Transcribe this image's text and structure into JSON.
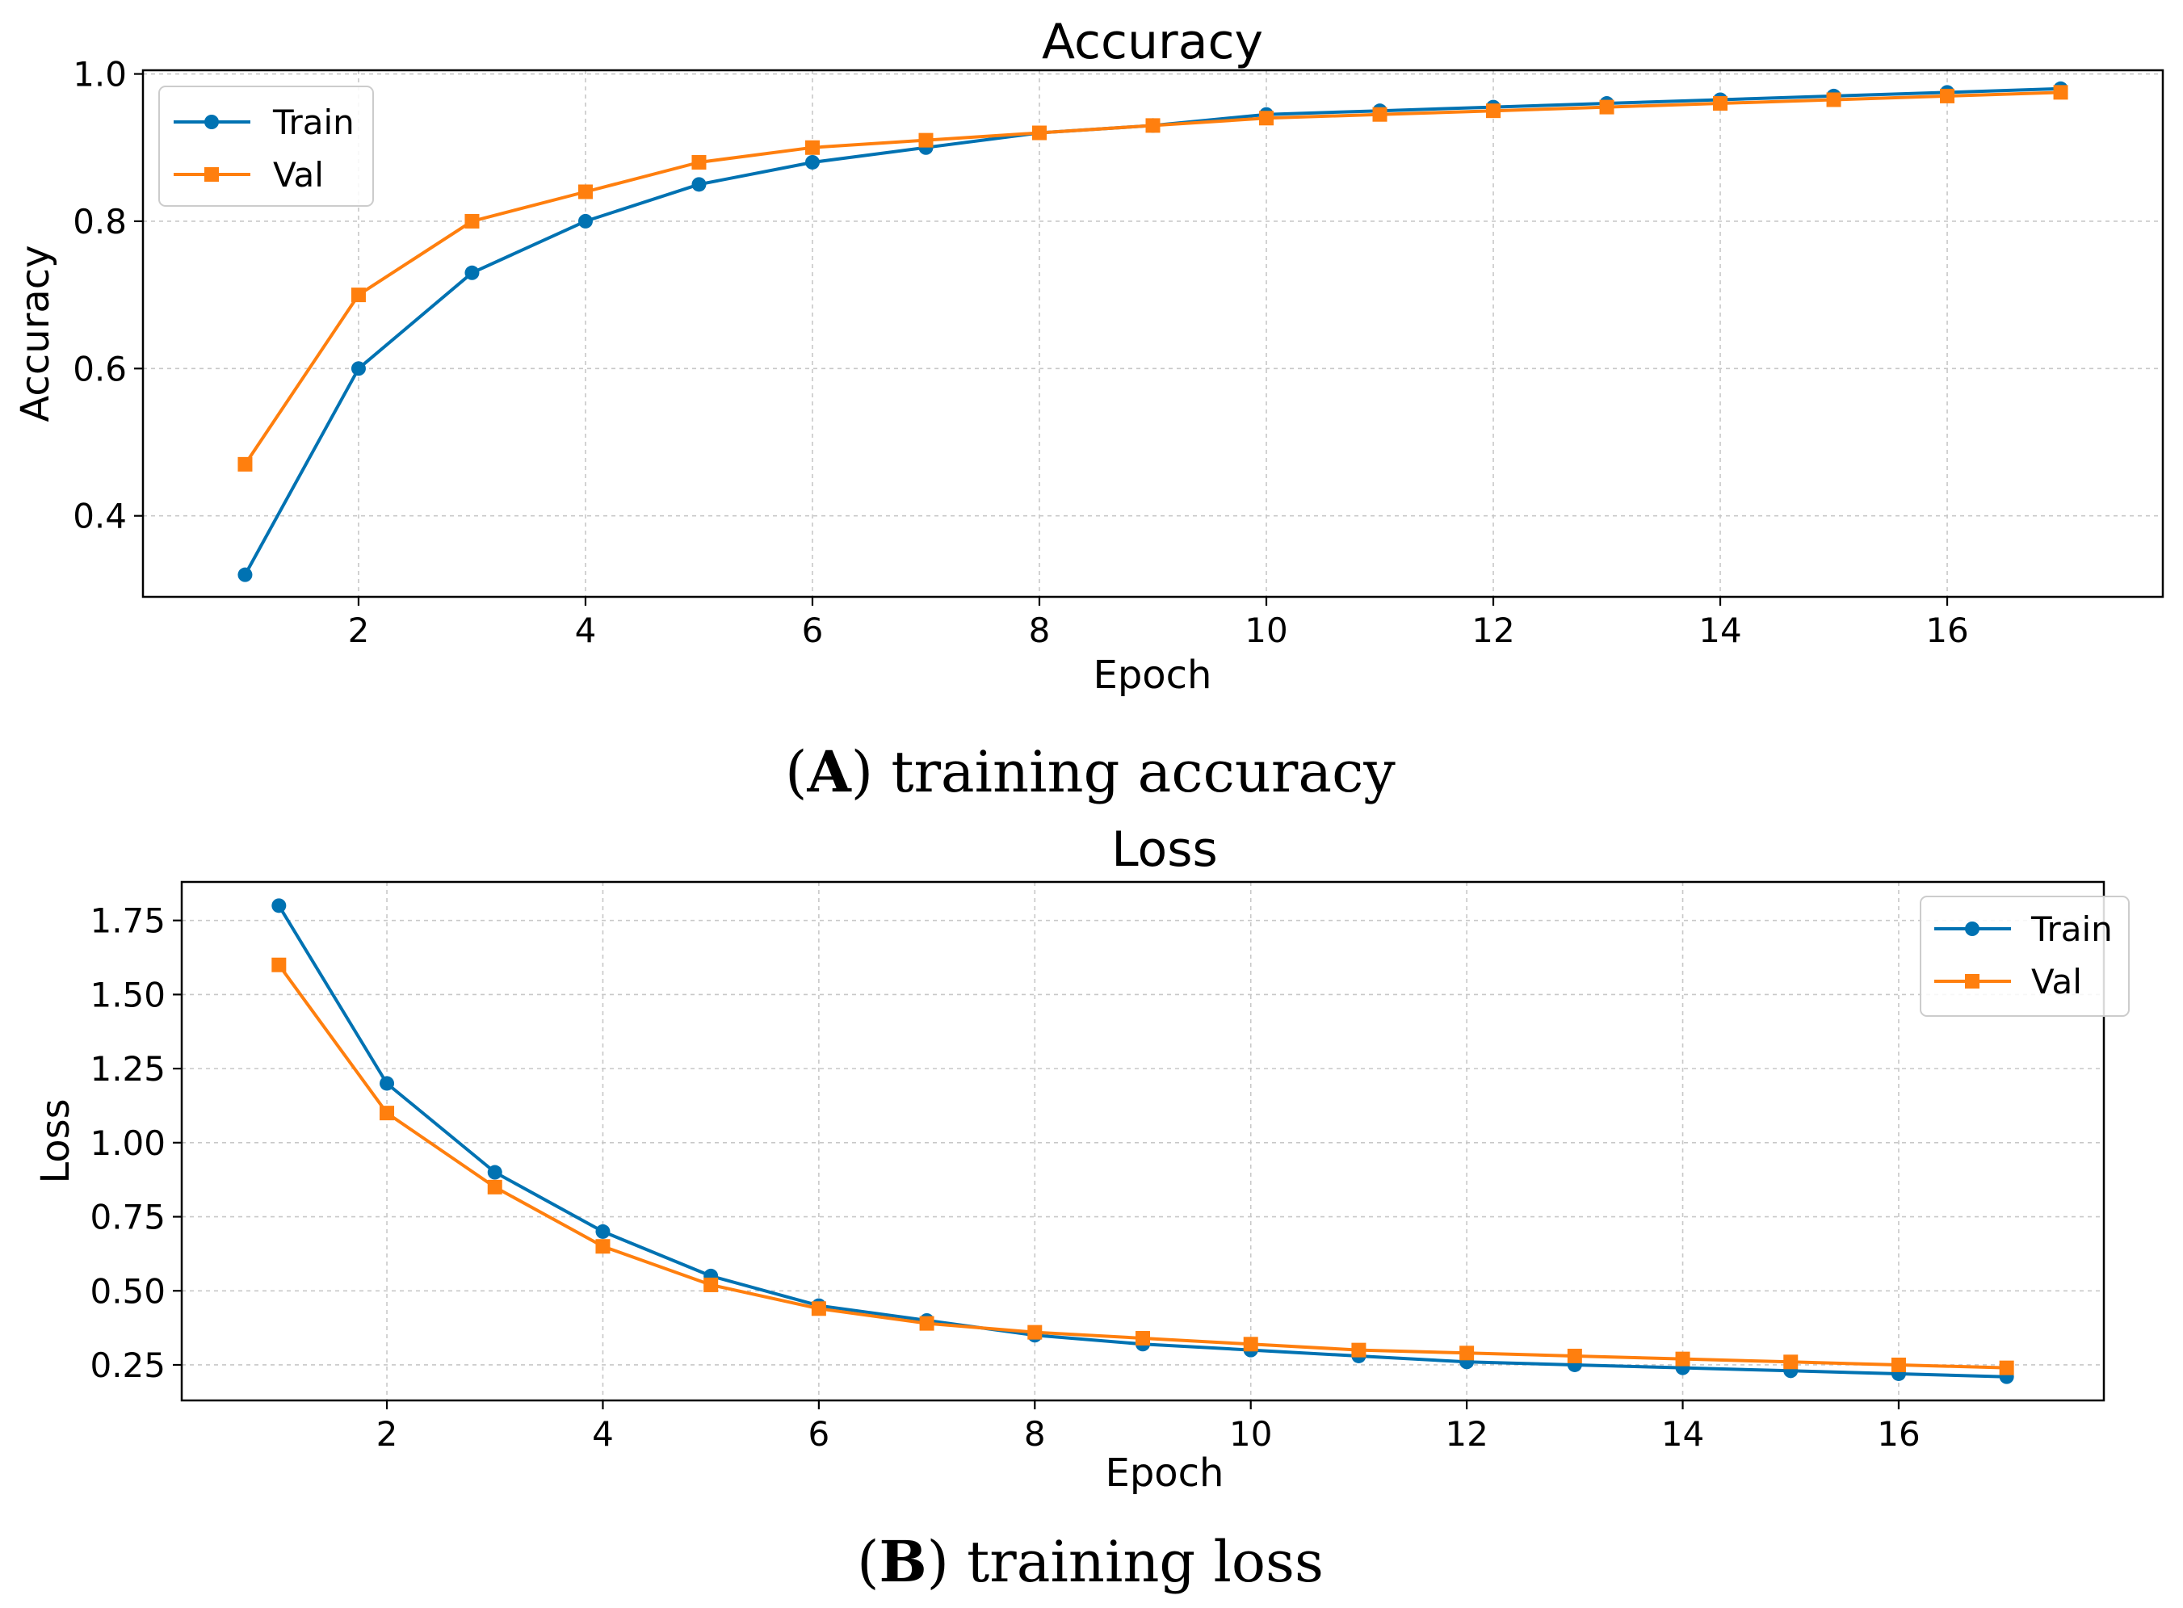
{
  "chart_data": [
    {
      "type": "line",
      "title": "Accuracy",
      "xlabel": "Epoch",
      "ylabel": "Accuracy",
      "caption": {
        "open": "(",
        "letter": "A",
        "rest": ") training accuracy"
      },
      "xlim": [
        0.1,
        17.9
      ],
      "ylim": [
        0.29,
        1.005
      ],
      "xticks": [
        2,
        4,
        6,
        8,
        10,
        12,
        14,
        16
      ],
      "yticks": [
        0.4,
        0.6,
        0.8,
        1.0
      ],
      "ytick_labels": [
        "0.4",
        "0.6",
        "0.8",
        "1.0"
      ],
      "legend_position": "upper-left",
      "x": [
        1,
        2,
        3,
        4,
        5,
        6,
        7,
        8,
        9,
        10,
        11,
        12,
        13,
        14,
        15,
        16,
        17
      ],
      "series": [
        {
          "name": "Train",
          "color": "#0072b2",
          "marker": "circle",
          "values": [
            0.32,
            0.6,
            0.73,
            0.8,
            0.85,
            0.88,
            0.9,
            0.92,
            0.93,
            0.945,
            0.95,
            0.955,
            0.96,
            0.965,
            0.97,
            0.975,
            0.98
          ]
        },
        {
          "name": "Val",
          "color": "#ff7f0e",
          "marker": "square",
          "values": [
            0.47,
            0.7,
            0.8,
            0.84,
            0.88,
            0.9,
            0.91,
            0.92,
            0.93,
            0.94,
            0.945,
            0.95,
            0.955,
            0.96,
            0.965,
            0.97,
            0.975
          ]
        }
      ]
    },
    {
      "type": "line",
      "title": "Loss",
      "xlabel": "Epoch",
      "ylabel": "Loss",
      "caption": {
        "open": "(",
        "letter": "B",
        "rest": ") training loss"
      },
      "xlim": [
        0.1,
        17.9
      ],
      "ylim": [
        0.13,
        1.88
      ],
      "xticks": [
        2,
        4,
        6,
        8,
        10,
        12,
        14,
        16
      ],
      "yticks": [
        0.25,
        0.5,
        0.75,
        1.0,
        1.25,
        1.5,
        1.75
      ],
      "ytick_labels": [
        "0.25",
        "0.50",
        "0.75",
        "1.00",
        "1.25",
        "1.50",
        "1.75"
      ],
      "legend_position": "upper-right",
      "x": [
        1,
        2,
        3,
        4,
        5,
        6,
        7,
        8,
        9,
        10,
        11,
        12,
        13,
        14,
        15,
        16,
        17
      ],
      "series": [
        {
          "name": "Train",
          "color": "#0072b2",
          "marker": "circle",
          "values": [
            1.8,
            1.2,
            0.9,
            0.7,
            0.55,
            0.45,
            0.4,
            0.35,
            0.32,
            0.3,
            0.28,
            0.26,
            0.25,
            0.24,
            0.23,
            0.22,
            0.21
          ]
        },
        {
          "name": "Val",
          "color": "#ff7f0e",
          "marker": "square",
          "values": [
            1.6,
            1.1,
            0.85,
            0.65,
            0.52,
            0.44,
            0.39,
            0.36,
            0.34,
            0.32,
            0.3,
            0.29,
            0.28,
            0.27,
            0.26,
            0.25,
            0.24
          ]
        }
      ]
    }
  ]
}
